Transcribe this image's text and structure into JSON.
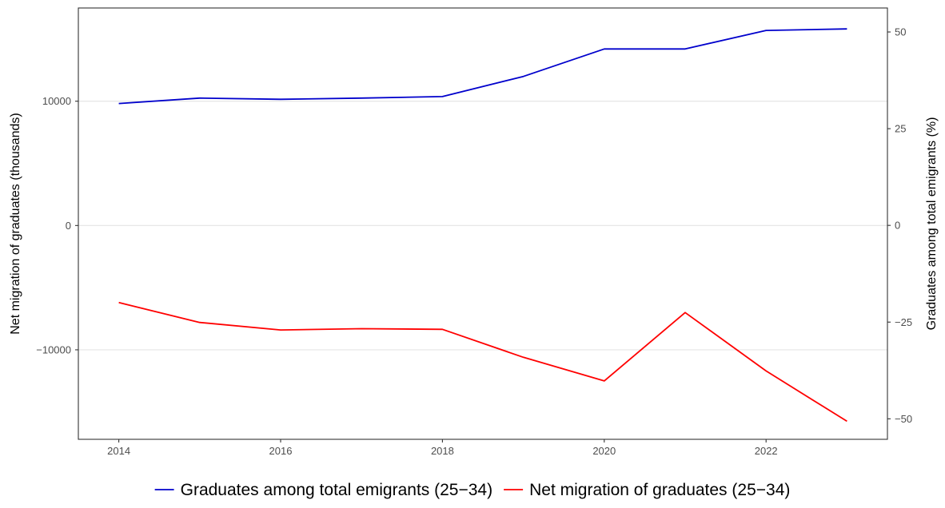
{
  "chart_data": {
    "type": "line",
    "title": "",
    "xlabel": "",
    "ylabel": "Net migration of graduates (thousands)",
    "y2label": "Graduates among total emigrants (%)",
    "x": [
      2014,
      2015,
      2016,
      2017,
      2018,
      2019,
      2020,
      2021,
      2022,
      2023
    ],
    "xlim": [
      2013.5,
      2023.5
    ],
    "ylim": [
      -17200,
      17500
    ],
    "y2lim": [
      -55.3,
      56.2
    ],
    "xticks": [
      "2014",
      "2016",
      "2018",
      "2020",
      "2022"
    ],
    "yticks": [
      "10000",
      "0",
      "−10000"
    ],
    "y2ticks": [
      "50",
      "25",
      "0",
      "−25",
      "−50"
    ],
    "grid": "horizontal",
    "legend_position": "bottom",
    "series": [
      {
        "name": "Graduates among total emigrants (25−34)",
        "axis": "right",
        "color": "#0000cc",
        "values": [
          31.5,
          32.9,
          32.6,
          32.9,
          33.3,
          38.5,
          45.6,
          45.6,
          50.4,
          50.8
        ]
      },
      {
        "name": "Net migration of graduates (25−34)",
        "axis": "left",
        "color": "#ff0000",
        "values": [
          -6200,
          -7800,
          -8400,
          -8300,
          -8350,
          -10600,
          -12500,
          -7000,
          -11700,
          -15750
        ]
      }
    ]
  }
}
